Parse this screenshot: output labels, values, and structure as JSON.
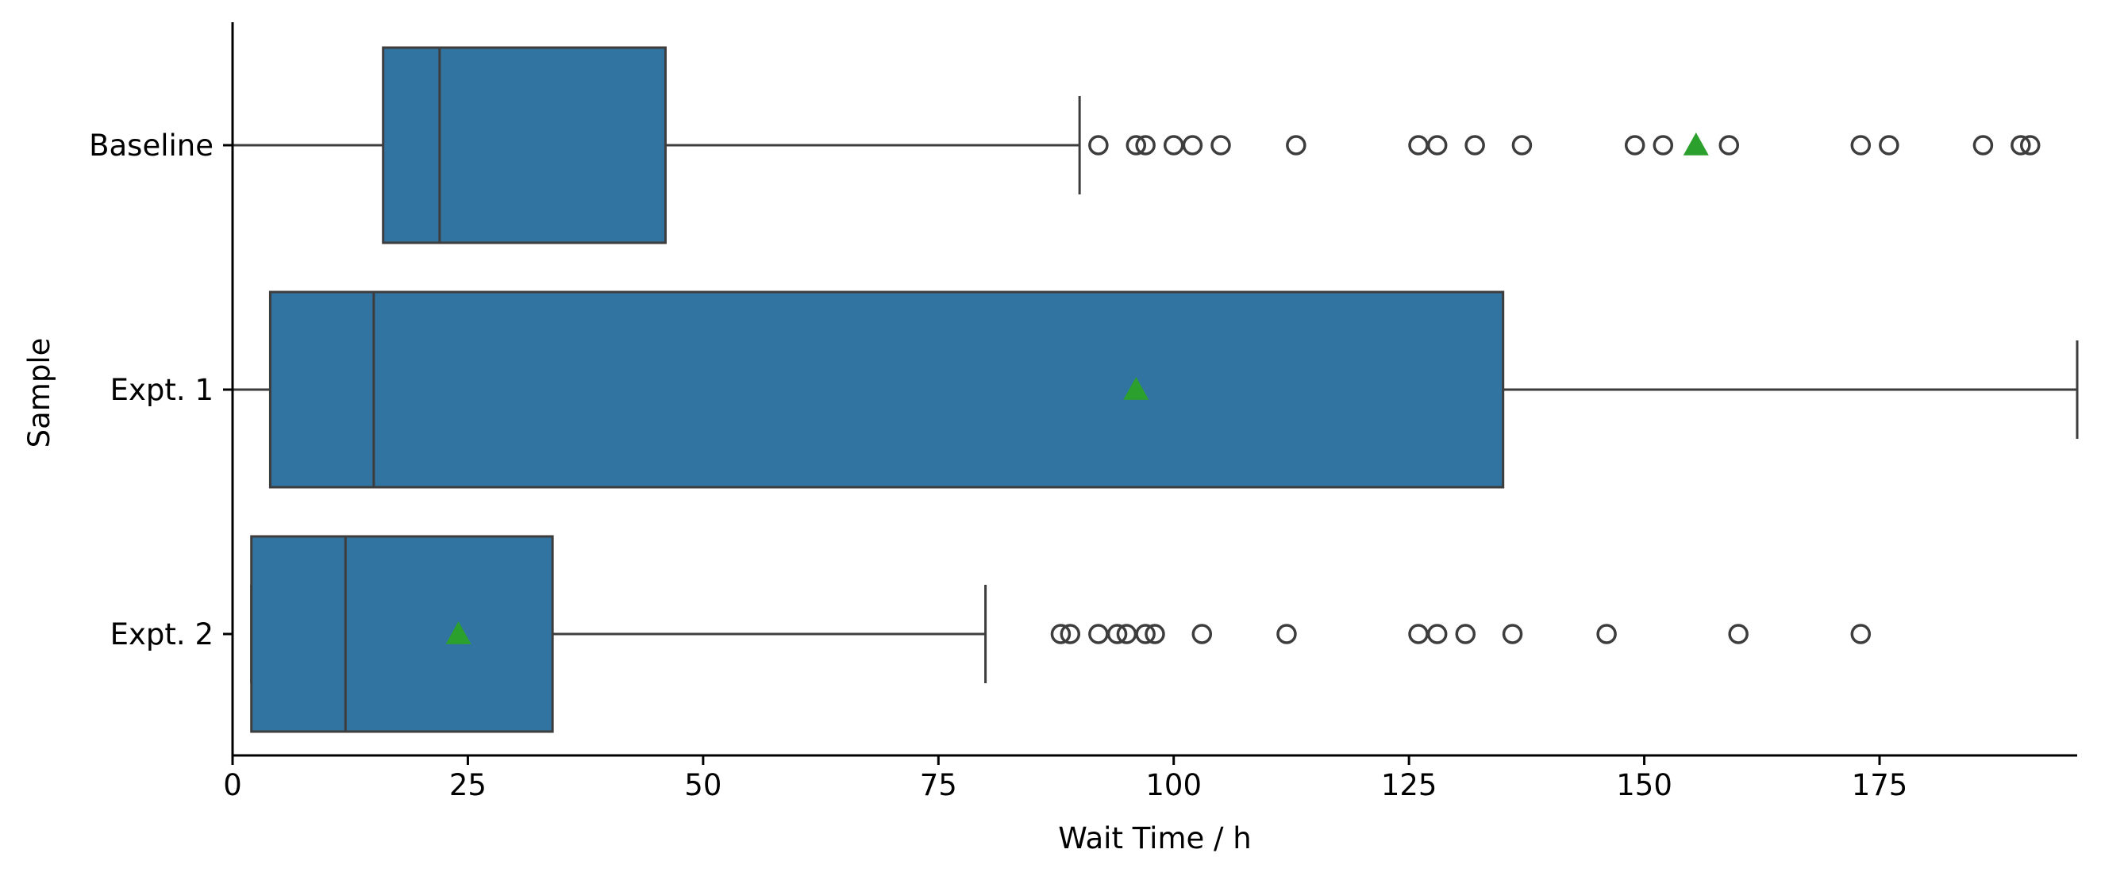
{
  "chart_data": {
    "type": "boxplot",
    "orientation": "horizontal",
    "xlabel": "Wait Time / h",
    "ylabel": "Sample",
    "xlim": [
      0,
      196
    ],
    "xticks": [
      0,
      25,
      50,
      75,
      100,
      125,
      150,
      175
    ],
    "xtick_labels": [
      "0",
      "25",
      "50",
      "75",
      "100",
      "125",
      "150",
      "175"
    ],
    "grid": false,
    "box_color": "#3274a1",
    "edge_color": "#3d3d3d",
    "mean_marker_color": "#2ca02c",
    "categories": [
      "Baseline",
      "Expt. 1",
      "Expt. 2"
    ],
    "boxes": [
      {
        "name": "Baseline",
        "whisker_low": 0,
        "q1": 16,
        "median": 22,
        "q3": 46,
        "whisker_high": 90,
        "mean": 155.5,
        "outliers": [
          92,
          96,
          97,
          100,
          102,
          105,
          113,
          126,
          128,
          132,
          137,
          149,
          152,
          159,
          173,
          176,
          186,
          190,
          191
        ]
      },
      {
        "name": "Expt. 1",
        "whisker_low": 0,
        "q1": 4,
        "median": 15,
        "q3": 135,
        "whisker_high": 196,
        "mean": 96,
        "outliers": []
      },
      {
        "name": "Expt. 2",
        "whisker_low": 2,
        "q1": 2,
        "median": 12,
        "q3": 34,
        "whisker_high": 80,
        "mean": 24,
        "outliers": [
          88,
          89,
          92,
          94,
          95,
          97,
          98,
          103,
          112,
          126,
          128,
          131,
          136,
          146,
          160,
          173
        ]
      }
    ]
  }
}
